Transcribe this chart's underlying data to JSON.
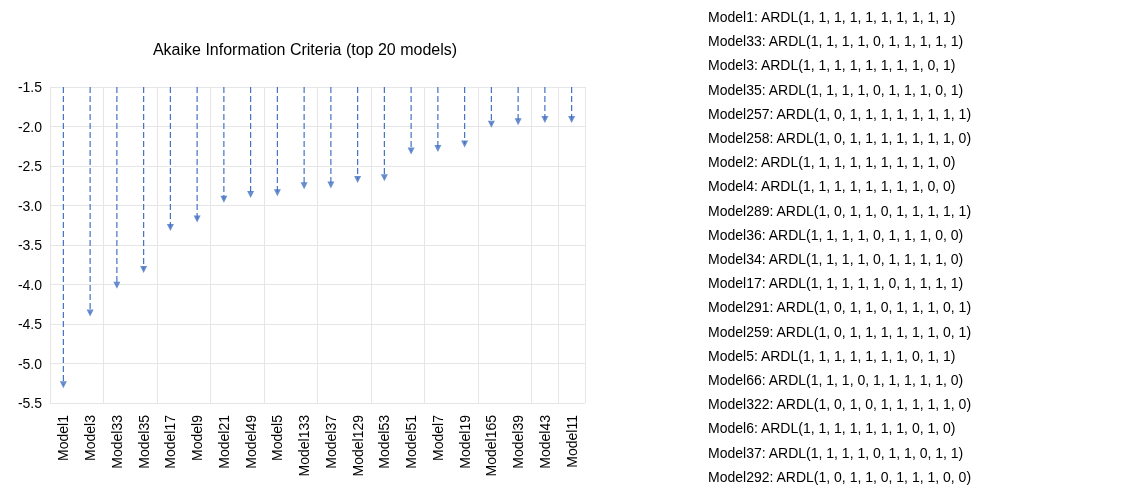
{
  "chart_data": {
    "type": "lollipop",
    "title": "Akaike Information Criteria (top 20 models)",
    "categories": [
      "Model1",
      "Model3",
      "Model33",
      "Model35",
      "Model17",
      "Model9",
      "Model21",
      "Model49",
      "Model5",
      "Model133",
      "Model37",
      "Model129",
      "Model53",
      "Model51",
      "Model7",
      "Model19",
      "Model165",
      "Model39",
      "Model43",
      "Model11"
    ],
    "values": [
      -5.27,
      -4.36,
      -4.01,
      -3.81,
      -3.28,
      -3.17,
      -2.92,
      -2.86,
      -2.84,
      -2.75,
      -2.74,
      -2.67,
      -2.65,
      -2.31,
      -2.28,
      -2.22,
      -1.97,
      -1.94,
      -1.91,
      -1.91
    ],
    "color": "#4472c4",
    "ylim": [
      -5.5,
      -1.5
    ],
    "yticks": [
      -5.5,
      {
        "value": -5,
        "label": "-5.0"
      },
      -4.5,
      {
        "value": -4,
        "label": "-4.0"
      },
      -3.5,
      {
        "value": -3,
        "label": "-3.0"
      },
      -2.5,
      {
        "value": -2,
        "label": "-2.0"
      },
      -1.5
    ],
    "grid": true,
    "marker": "triangle",
    "line_style": "dashed",
    "annotations": [
      "Model1: ARDL(1, 1, 1, 1, 1, 1, 1, 1, 1, 1)",
      "Model33: ARDL(1, 1, 1, 1, 0, 1, 1, 1, 1, 1)",
      "Model3: ARDL(1, 1, 1, 1, 1, 1, 1, 1, 0, 1)",
      "Model35: ARDL(1, 1, 1, 1, 0, 1, 1, 1, 0, 1)",
      "Model257: ARDL(1, 0, 1, 1, 1, 1, 1, 1, 1, 1)",
      "Model258: ARDL(1, 0, 1, 1, 1, 1, 1, 1, 1, 0)",
      "Model2: ARDL(1, 1, 1, 1, 1, 1, 1, 1, 1, 0)",
      "Model4: ARDL(1, 1, 1, 1, 1, 1, 1, 1, 0, 0)",
      "Model289: ARDL(1, 0, 1, 1, 0, 1, 1, 1, 1, 1)",
      "Model36: ARDL(1, 1, 1, 1, 0, 1, 1, 1, 0, 0)",
      "Model34: ARDL(1, 1, 1, 1, 0, 1, 1, 1, 1, 0)",
      "Model17: ARDL(1, 1, 1, 1, 1, 0, 1, 1, 1, 1)",
      "Model291: ARDL(1, 0, 1, 1, 0, 1, 1, 1, 0, 1)",
      "Model259: ARDL(1, 0, 1, 1, 1, 1, 1, 1, 0, 1)",
      "Model5: ARDL(1, 1, 1, 1, 1, 1, 1, 0, 1, 1)",
      "Model66: ARDL(1, 1, 1, 0, 1, 1, 1, 1, 1, 0)",
      "Model322: ARDL(1, 0, 1, 0, 1, 1, 1, 1, 1, 0)",
      "Model6: ARDL(1, 1, 1, 1, 1, 1, 1, 0, 1, 0)",
      "Model37: ARDL(1, 1, 1, 1, 0, 1, 1, 0, 1, 1)",
      "Model292: ARDL(1, 0, 1, 1, 0, 1, 1, 1, 0, 0)"
    ]
  }
}
